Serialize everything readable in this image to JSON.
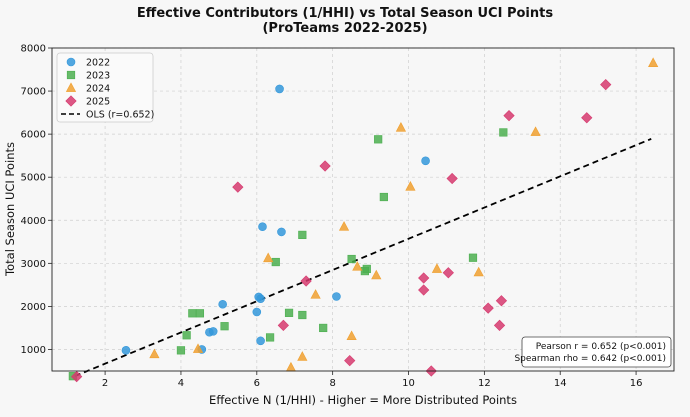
{
  "chart_data": {
    "type": "scatter",
    "title": "Effective Contributors (1/HHI) vs Total Season UCI Points",
    "subtitle": "(ProTeams 2022-2025)",
    "xlabel": "Effective N (1/HHI) - Higher = More Distributed Points",
    "ylabel": "Total Season UCI Points",
    "xlim": [
      0.6,
      17.0
    ],
    "ylim": [
      500,
      8000
    ],
    "xticks": [
      2,
      4,
      6,
      8,
      10,
      12,
      14,
      16
    ],
    "yticks": [
      1000,
      2000,
      3000,
      4000,
      5000,
      6000,
      7000,
      8000
    ],
    "grid": true,
    "legend_position": "top-left",
    "series": [
      {
        "name": "2022",
        "marker": "circle",
        "color": "#3498db",
        "points": [
          [
            2.55,
            980
          ],
          [
            4.55,
            1000
          ],
          [
            4.75,
            1400
          ],
          [
            4.85,
            1420
          ],
          [
            5.1,
            2050
          ],
          [
            6.0,
            1870
          ],
          [
            6.05,
            2220
          ],
          [
            6.1,
            2180
          ],
          [
            6.1,
            1200
          ],
          [
            6.15,
            3850
          ],
          [
            6.65,
            3730
          ],
          [
            6.6,
            7050
          ],
          [
            8.1,
            2230
          ],
          [
            10.45,
            5380
          ]
        ]
      },
      {
        "name": "2023",
        "marker": "square",
        "color": "#4caf50",
        "points": [
          [
            1.15,
            380
          ],
          [
            4.0,
            980
          ],
          [
            4.15,
            1330
          ],
          [
            4.3,
            1840
          ],
          [
            4.5,
            1840
          ],
          [
            5.15,
            1540
          ],
          [
            6.35,
            1280
          ],
          [
            6.5,
            3030
          ],
          [
            6.85,
            1850
          ],
          [
            7.2,
            1800
          ],
          [
            7.2,
            3660
          ],
          [
            7.75,
            1500
          ],
          [
            8.5,
            3100
          ],
          [
            8.9,
            2870
          ],
          [
            8.85,
            2820
          ],
          [
            9.2,
            5880
          ],
          [
            9.35,
            4540
          ],
          [
            11.7,
            3130
          ],
          [
            12.5,
            6040
          ]
        ]
      },
      {
        "name": "2024",
        "marker": "triangle",
        "color": "#f0a030",
        "points": [
          [
            3.3,
            890
          ],
          [
            4.45,
            1010
          ],
          [
            6.3,
            3120
          ],
          [
            6.9,
            580
          ],
          [
            7.2,
            830
          ],
          [
            7.55,
            2270
          ],
          [
            8.3,
            3850
          ],
          [
            8.5,
            1310
          ],
          [
            8.65,
            2920
          ],
          [
            9.15,
            2720
          ],
          [
            9.8,
            6150
          ],
          [
            10.05,
            4780
          ],
          [
            10.75,
            2870
          ],
          [
            11.85,
            2790
          ],
          [
            13.35,
            6050
          ],
          [
            16.45,
            7650
          ]
        ]
      },
      {
        "name": "2025",
        "marker": "diamond",
        "color": "#d63a6f",
        "points": [
          [
            1.25,
            370
          ],
          [
            5.5,
            4770
          ],
          [
            6.7,
            1560
          ],
          [
            7.3,
            2590
          ],
          [
            7.8,
            5260
          ],
          [
            8.45,
            740
          ],
          [
            10.4,
            2660
          ],
          [
            10.4,
            2380
          ],
          [
            10.6,
            500
          ],
          [
            11.05,
            2780
          ],
          [
            11.15,
            4970
          ],
          [
            12.1,
            1960
          ],
          [
            12.4,
            1560
          ],
          [
            12.45,
            2130
          ],
          [
            12.65,
            6430
          ],
          [
            14.7,
            6380
          ],
          [
            15.2,
            7150
          ]
        ]
      }
    ],
    "fit_line": {
      "name": "OLS (r=0.652)",
      "x": [
        1.2,
        16.4
      ],
      "y": [
        380,
        5890
      ],
      "color": "#000000"
    },
    "stats": {
      "line1": "Pearson r = 0.652 (p<0.001)",
      "line2": "Spearman rho = 0.642 (p<0.001)"
    }
  }
}
